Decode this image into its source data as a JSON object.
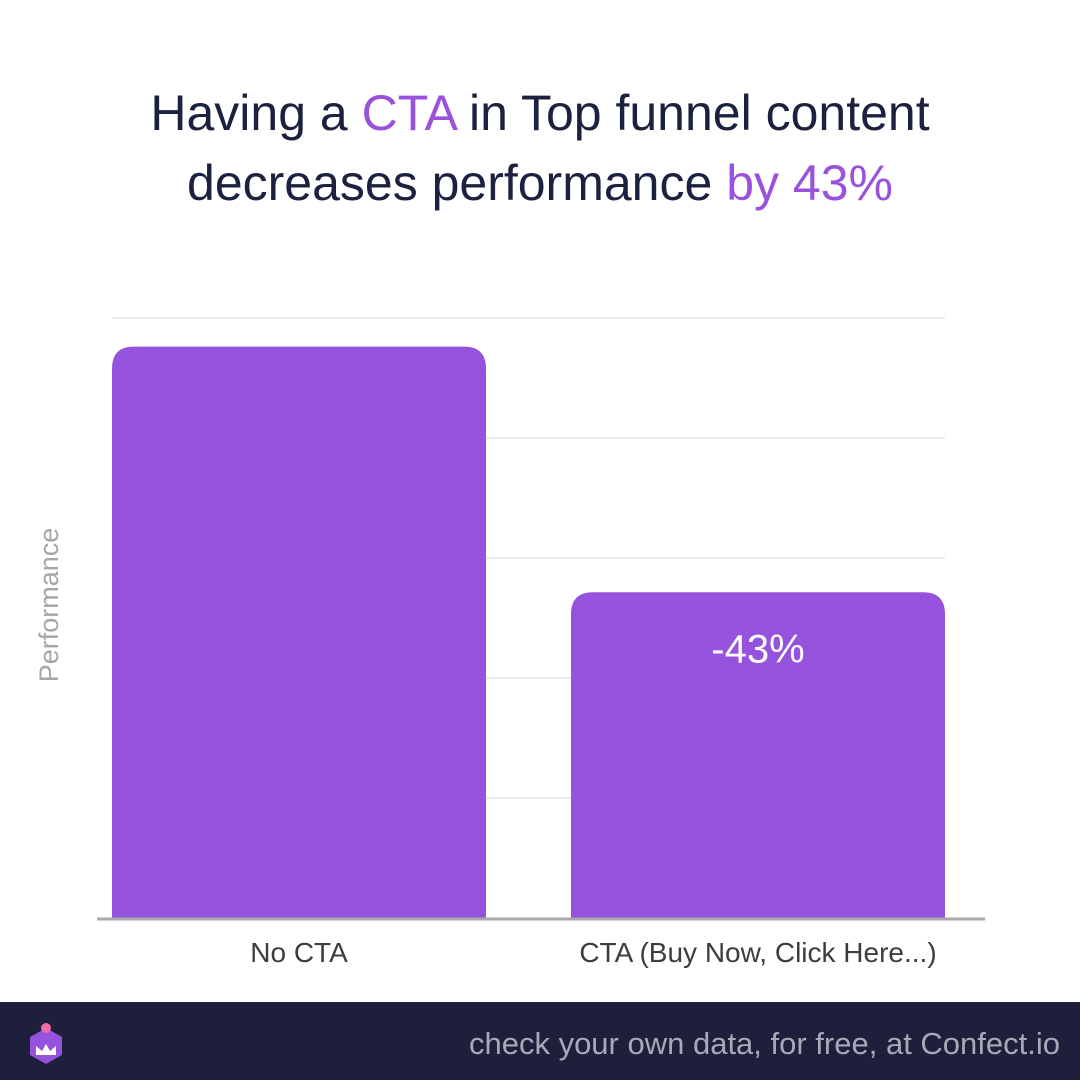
{
  "title": {
    "line1_pre": "Having a ",
    "line1_accent": "CTA",
    "line1_post": " in Top funnel content",
    "line2_pre": "decreases performance ",
    "line2_accent": "by 43%"
  },
  "colors": {
    "bar": "#9552dc",
    "accent": "#9a52dd",
    "title": "#1d2140",
    "footer_bg": "#1d1f3b",
    "footer_text": "#a7a9b6",
    "axis_label": "#a6a6a6",
    "tick_label": "#3d3d3d",
    "grid": "#e6e6e6",
    "baseline": "#a9a9a9"
  },
  "chart_data": {
    "type": "bar",
    "categories": [
      "No CTA",
      "CTA (Buy Now, Click Here...)"
    ],
    "values": [
      100,
      57
    ],
    "data_labels": [
      "",
      "-43%"
    ],
    "ylabel": "Performance",
    "ylim": [
      0,
      105
    ],
    "yticks_shown": false,
    "grid": true
  },
  "footer": {
    "text": "check your own data, for free, at Confect.io",
    "logo_icon": "confect-logo-icon"
  }
}
